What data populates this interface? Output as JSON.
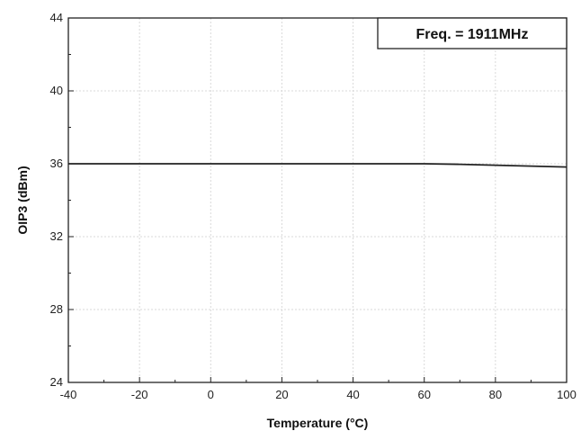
{
  "chart_data": {
    "type": "line",
    "title": "",
    "xlabel": "Temperature (°C)",
    "ylabel": "OIP3 (dBm)",
    "xlim": [
      -40,
      100
    ],
    "ylim": [
      24,
      44
    ],
    "x_ticks": [
      -40,
      -20,
      0,
      20,
      40,
      60,
      80,
      100
    ],
    "y_ticks": [
      24,
      28,
      32,
      36,
      40,
      44
    ],
    "grid": true,
    "annotation": "Freq. = 1911MHz",
    "annotation_position": "top-right",
    "series": [
      {
        "color": "#222222",
        "x": [
          -40,
          -20,
          0,
          20,
          40,
          60,
          70,
          80,
          90,
          100
        ],
        "y": [
          36.0,
          36.0,
          36.0,
          36.0,
          36.0,
          36.0,
          35.97,
          35.92,
          35.87,
          35.82
        ]
      }
    ]
  }
}
